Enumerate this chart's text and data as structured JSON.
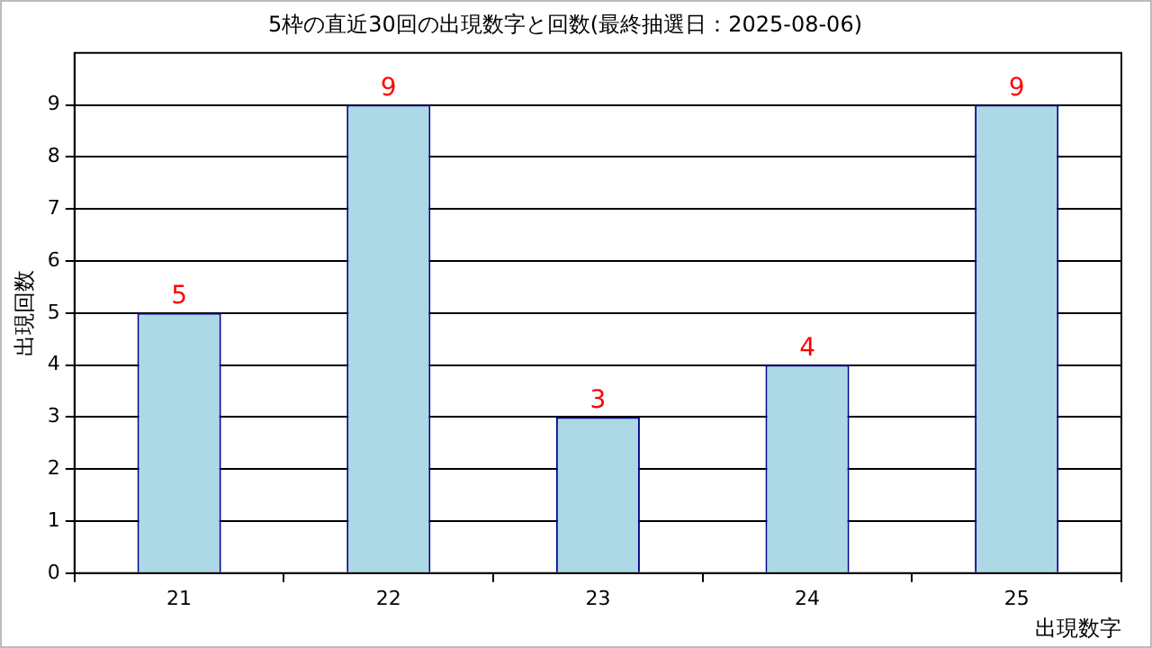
{
  "chart_data": {
    "type": "bar",
    "title": "5枠の直近30回の出現数字と回数(最終抽選日：2025-08-06)",
    "xlabel": "出現数字",
    "ylabel": "出現回数",
    "categories": [
      "21",
      "22",
      "23",
      "24",
      "25"
    ],
    "series": [
      {
        "color": "#add8e6",
        "values": [
          5,
          9,
          3,
          4,
          9
        ]
      }
    ],
    "ylim": [
      0,
      10
    ],
    "yticks": [
      0,
      1,
      2,
      3,
      4,
      5,
      6,
      7,
      8,
      9
    ],
    "grid": "y",
    "data_labels": true
  }
}
